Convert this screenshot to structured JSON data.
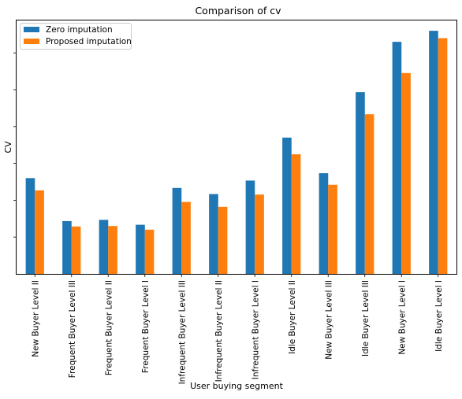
{
  "chart_data": {
    "type": "bar",
    "title": "Comparison of cv",
    "xlabel": "User buying segment",
    "ylabel": "CV",
    "categories": [
      "New Buyer Level II",
      "Frequent Buyer Level III",
      "Frequent Buyer Level II",
      "Frequent Buyer Level I",
      "Infrequent Buyer Level III",
      "Infrequent Buyer Level II",
      "Infrequent Buyer Level I",
      "Idle Buyer Level II",
      "New Buyer Level III",
      "Idle Buyer Level III",
      "New Buyer Level I",
      "Idle Buyer Level I"
    ],
    "series": [
      {
        "name": "Zero imputation",
        "color": "#1f77b4",
        "values": [
          0.39,
          0.215,
          0.22,
          0.2,
          0.35,
          0.325,
          0.38,
          0.555,
          0.41,
          0.74,
          0.945,
          0.99
        ]
      },
      {
        "name": "Proposed imputation",
        "color": "#ff7f0e",
        "values": [
          0.34,
          0.193,
          0.195,
          0.18,
          0.293,
          0.273,
          0.323,
          0.487,
          0.363,
          0.65,
          0.818,
          0.96
        ]
      }
    ],
    "ylim": [
      0,
      1.0
    ],
    "y_ticks": [
      0.15,
      0.3,
      0.45,
      0.6,
      0.75,
      0.9
    ],
    "y_tick_labels_shown": false,
    "grid": false,
    "legend_position": "top-left"
  }
}
